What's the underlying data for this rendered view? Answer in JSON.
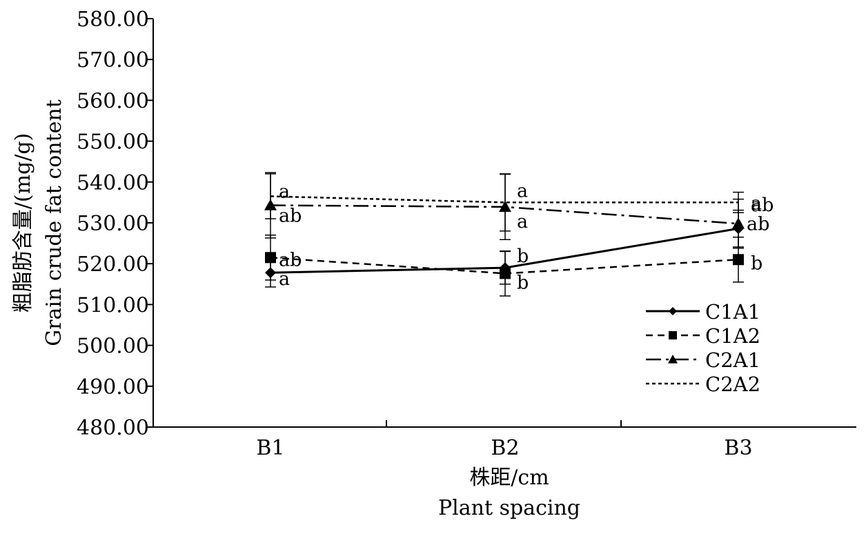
{
  "chart_data": {
    "type": "line",
    "title": "",
    "xlabel": [
      "株距/cm",
      "Plant spacing"
    ],
    "ylabel": [
      "粗脂肪含量/(mg/g)",
      "Grain crude fat content"
    ],
    "categories": [
      "B1",
      "B2",
      "B3"
    ],
    "ylim": [
      480,
      580
    ],
    "yticks": [
      "480.00",
      "490.00",
      "500.00",
      "510.00",
      "520.00",
      "530.00",
      "540.00",
      "550.00",
      "560.00",
      "570.00",
      "580.00"
    ],
    "grid": false,
    "legend_position": "bottom-right",
    "series": [
      {
        "name": "C1A1",
        "values": [
          517.8,
          519.0,
          528.6
        ],
        "error": [
          3.5,
          4.0,
          4.5
        ],
        "significance": [
          "a",
          "b",
          "ab"
        ],
        "marker": "diamond",
        "line_style": "solid",
        "color": "#000000"
      },
      {
        "name": "C1A2",
        "values": [
          521.5,
          517.6,
          521.0
        ],
        "error": [
          5.5,
          5.5,
          5.5
        ],
        "significance": [
          "ab",
          "b",
          "b"
        ],
        "marker": "square",
        "line_style": "dashed",
        "color": "#000000"
      },
      {
        "name": "C2A1",
        "values": [
          534.3,
          533.9,
          529.8
        ],
        "error": [
          8.0,
          8.0,
          6.0
        ],
        "significance": [
          "ab",
          "a",
          "ab"
        ],
        "marker": "triangle",
        "line_style": "dashdot",
        "color": "#000000"
      },
      {
        "name": "C2A2",
        "values": [
          536.5,
          535.0,
          535.0
        ],
        "error": [
          5.5,
          7.0,
          2.5
        ],
        "significance": [
          "a",
          "a",
          "a"
        ],
        "marker": "none",
        "line_style": "dotted",
        "color": "#000000"
      }
    ]
  }
}
